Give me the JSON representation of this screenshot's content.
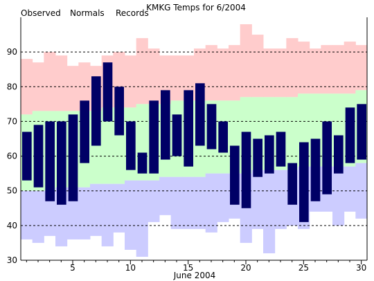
{
  "title": "KMKG Temps for 6/2004",
  "colors": {
    "observed": "#000066",
    "normals": "#cbffcb",
    "records": "#ffcccc",
    "below_normal": "#ccccff",
    "legend_observed": "#000066",
    "legend_normals": "#006600",
    "legend_records": "#ff66aa"
  },
  "chart_data": {
    "type": "bar",
    "title": "KMKG Temps for 6/2004",
    "xlabel": "June 2004",
    "ylabel": "",
    "xlim": [
      1,
      30
    ],
    "ylim": [
      30,
      100
    ],
    "grid": true,
    "legend_placement": "top-left",
    "legend": [
      "Observed",
      "Normals",
      "Records"
    ],
    "x_ticks": [
      5,
      10,
      15,
      20,
      25,
      30
    ],
    "y_ticks": [
      30,
      40,
      50,
      60,
      70,
      80,
      90
    ],
    "days": [
      1,
      2,
      3,
      4,
      5,
      6,
      7,
      8,
      9,
      10,
      11,
      12,
      13,
      14,
      15,
      16,
      17,
      18,
      19,
      20,
      21,
      22,
      23,
      24,
      25,
      26,
      27,
      28,
      29,
      30
    ],
    "series": [
      {
        "name": "Records",
        "high": [
          88,
          87,
          90,
          89,
          86,
          87,
          86,
          89,
          90,
          89,
          94,
          91,
          89,
          89,
          89,
          91,
          92,
          91,
          92,
          98,
          95,
          91,
          91,
          94,
          93,
          91,
          92,
          92,
          93,
          92
        ],
        "low": [
          36,
          35,
          37,
          34,
          36,
          36,
          37,
          34,
          38,
          33,
          31,
          41,
          43,
          39,
          39,
          39,
          38,
          41,
          42,
          35,
          39,
          32,
          39,
          40,
          39,
          44,
          44,
          40,
          44,
          42
        ]
      },
      {
        "name": "Normals",
        "high": [
          72,
          73,
          73,
          73,
          73,
          73,
          73,
          74,
          74,
          74,
          75,
          75,
          75,
          76,
          76,
          76,
          76,
          76,
          76,
          77,
          77,
          77,
          77,
          77,
          78,
          78,
          78,
          78,
          78,
          79
        ],
        "low": [
          50,
          50,
          50,
          51,
          51,
          51,
          52,
          52,
          52,
          53,
          53,
          53,
          54,
          54,
          54,
          54,
          55,
          55,
          55,
          55,
          56,
          56,
          56,
          56,
          57,
          57,
          57,
          57,
          57,
          58
        ]
      },
      {
        "name": "Observed",
        "high": [
          67,
          69,
          70,
          70,
          72,
          76,
          83,
          87,
          80,
          70,
          61,
          76,
          79,
          72,
          79,
          81,
          75,
          70,
          63,
          67,
          65,
          66,
          67,
          58,
          64,
          65,
          70,
          66,
          74,
          75
        ],
        "low": [
          53,
          51,
          47,
          46,
          47,
          58,
          63,
          70,
          66,
          56,
          55,
          55,
          59,
          60,
          57,
          63,
          62,
          61,
          46,
          45,
          54,
          55,
          57,
          46,
          41,
          47,
          49,
          55,
          58,
          59
        ]
      }
    ]
  }
}
